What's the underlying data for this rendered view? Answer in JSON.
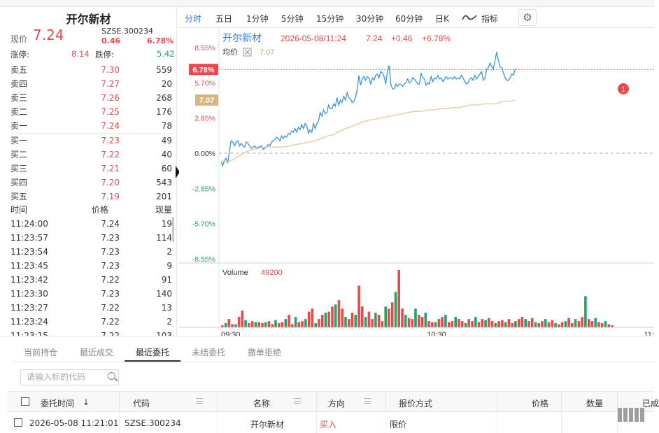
{
  "quote": {
    "name": "开尔新材",
    "price_label": "现价",
    "price": "7.24",
    "code": "SZSE.300234",
    "change": "0.46",
    "change_pct": "6.78%",
    "limit_up_label": "涨停:",
    "limit_up": "8.14",
    "limit_down_label": "跌停:",
    "limit_down": "5.42"
  },
  "order_book": [
    {
      "label": "卖五",
      "price": "7.30",
      "vol": "559"
    },
    {
      "label": "卖四",
      "price": "7.27",
      "vol": "20"
    },
    {
      "label": "卖三",
      "price": "7.26",
      "vol": "268"
    },
    {
      "label": "卖二",
      "price": "7.25",
      "vol": "176"
    },
    {
      "label": "卖一",
      "price": "7.24",
      "vol": "78"
    },
    {
      "label": "买一",
      "price": "7.23",
      "vol": "49"
    },
    {
      "label": "买二",
      "price": "7.22",
      "vol": "40"
    },
    {
      "label": "买三",
      "price": "7.21",
      "vol": "60"
    },
    {
      "label": "买四",
      "price": "7.20",
      "vol": "543"
    },
    {
      "label": "买五",
      "price": "7.19",
      "vol": "201"
    }
  ],
  "ticks_header": {
    "time": "时间",
    "price": "价格",
    "vol": "现量"
  },
  "ticks": [
    {
      "time": "11:24:00",
      "price": "7.24",
      "vol": "19"
    },
    {
      "time": "11:23:57",
      "price": "7.23",
      "vol": "114"
    },
    {
      "time": "11:23:54",
      "price": "7.23",
      "vol": "2"
    },
    {
      "time": "11:23:45",
      "price": "7.23",
      "vol": "9"
    },
    {
      "time": "11:23:42",
      "price": "7.22",
      "vol": "91"
    },
    {
      "time": "11:23:30",
      "price": "7.23",
      "vol": "140"
    },
    {
      "time": "11:23:27",
      "price": "7.22",
      "vol": "13"
    },
    {
      "time": "11:23:24",
      "price": "7.22",
      "vol": "2"
    },
    {
      "time": "11:23:15",
      "price": "7.22",
      "vol": "103"
    }
  ],
  "chart_tabs": [
    "分时",
    "五日",
    "1分钟",
    "5分钟",
    "15分钟",
    "30分钟",
    "60分钟",
    "日K"
  ],
  "chart_tab_active": "分时",
  "indicator_label": "指标",
  "icons": {
    "line_style": "wave-icon",
    "settings": "gear-icon",
    "search": "search-icon",
    "collapse": "collapse-arrow-icon"
  },
  "colors": {
    "up": "#e84a4a",
    "down": "#20a56a",
    "price_line": "#3a94dc",
    "avg_line": "#e8c9a0",
    "active_tab": "#2f80ed"
  },
  "chart_header": {
    "name": "开尔新材",
    "datetime": "2026-05-08/11:24",
    "price": "7.24",
    "change": "+0.46",
    "change_pct": "+6.78%",
    "avg_label": "均价",
    "avg_value": "7.07",
    "volume_label": "Volume",
    "volume_value": "49200",
    "marker_badge": "1",
    "price_tag": "6.78%",
    "avg_tag": "7.07"
  },
  "chart_data": {
    "type": "line",
    "ylabels": [
      "8.55%",
      "5.70%",
      "2.85%",
      "0.00%",
      "-2.85%",
      "-5.70%",
      "-8.55%"
    ],
    "ylim": [
      -8.55,
      8.55
    ],
    "xlabels": [
      "09:30",
      "10:30",
      "11:"
    ],
    "series": [
      {
        "values": [
          -0.7,
          -1.0,
          -0.6,
          -0.4,
          -0.8,
          0.2,
          1.0,
          0.9,
          0.6,
          0.9,
          1.0,
          0.6,
          0.8,
          0.6,
          0.5,
          0.9,
          0.8,
          0.6,
          0.4,
          0.5,
          0.6,
          0.4,
          0.5,
          0.5,
          0.6,
          0.3,
          0.4,
          0.5,
          0.7,
          0.6,
          0.9,
          1.0,
          1.1,
          1.3,
          1.2,
          1.0,
          1.4,
          1.2,
          1.4,
          1.3,
          1.6,
          1.5,
          1.8,
          1.7,
          2.0,
          1.7,
          2.1,
          1.9,
          2.3,
          2.0,
          2.4,
          2.2,
          1.6,
          1.9,
          1.7,
          2.4,
          2.0,
          2.4,
          2.6,
          3.3,
          3.0,
          3.5,
          3.2,
          3.3,
          3.9,
          3.6,
          3.6,
          4.0,
          3.8,
          4.5,
          3.9,
          4.3,
          4.1,
          4.6,
          4.3,
          4.9,
          4.5,
          4.4,
          4.1,
          4.2,
          4.5,
          5.2,
          6.3,
          5.5,
          6.0,
          6.2,
          5.9,
          6.2,
          6.1,
          5.6,
          6.1,
          5.9,
          6.3,
          6.4,
          6.1,
          6.6,
          6.5,
          6.2,
          5.6,
          6.6,
          7.1,
          5.6,
          5.2,
          5.2,
          5.6,
          5.4,
          5.6,
          5.6,
          5.4,
          5.6,
          5.7,
          6.0,
          5.7,
          5.8,
          6.1,
          6.0,
          5.8,
          5.6,
          5.6,
          6.5,
          6.1,
          6.0,
          5.5,
          5.7,
          5.6,
          6.2,
          5.8,
          6.1,
          6.0,
          6.3,
          6.0,
          6.1,
          5.8,
          6.0,
          6.2,
          6.0,
          6.1,
          6.1,
          6.0,
          6.2,
          6.0,
          6.1,
          6.0,
          6.3,
          6.1,
          5.8,
          5.6,
          5.7,
          6.0,
          6.1,
          5.9,
          6.3,
          6.0,
          6.2,
          6.4,
          6.6,
          5.9,
          6.1,
          6.8,
          6.9,
          7.3,
          7.0,
          6.8,
          7.5,
          8.2,
          7.5,
          7.0,
          6.9,
          6.5,
          6.1,
          5.9,
          5.9,
          6.1,
          6.4,
          6.3,
          6.8
        ]
      },
      {
        "values": [
          -0.6,
          -0.7,
          -0.5,
          -0.2,
          0.1,
          0.3,
          0.4,
          0.5,
          0.5,
          0.5,
          0.5,
          0.6,
          0.7,
          0.8,
          0.9,
          1.0,
          1.2,
          1.4,
          1.5,
          1.8,
          2.0,
          2.2,
          2.4,
          2.6,
          2.7,
          2.8,
          2.9,
          3.0,
          3.1,
          3.2,
          3.3,
          3.4,
          3.4,
          3.5,
          3.5,
          3.6,
          3.6,
          3.7,
          3.7,
          3.8,
          3.9,
          3.9,
          4.0,
          4.0,
          4.0,
          4.2,
          4.2,
          4.3
        ]
      }
    ],
    "volume": [
      2,
      4,
      8,
      3,
      3,
      10,
      16,
      7,
      4,
      6,
      5,
      5,
      4,
      5,
      6,
      3,
      7,
      4,
      5,
      8,
      12,
      3,
      10,
      5,
      6,
      8,
      15,
      18,
      4,
      8,
      12,
      14,
      15,
      20,
      22,
      26,
      18,
      10,
      8,
      14,
      12,
      40,
      20,
      10,
      15,
      8,
      14,
      12,
      6,
      20,
      18,
      24,
      34,
      55,
      18,
      12,
      9,
      8,
      18,
      12,
      10,
      14,
      6,
      5,
      5,
      8,
      10,
      12,
      5,
      6,
      10,
      8,
      6,
      4,
      8,
      6,
      10,
      5,
      8,
      7,
      9,
      6,
      4,
      6,
      7,
      5,
      8,
      4,
      6,
      8,
      10,
      8,
      6,
      9,
      5,
      4,
      6,
      8,
      5,
      7,
      4,
      3,
      5,
      6,
      9,
      4,
      8,
      6,
      10,
      30,
      8,
      6,
      9,
      5,
      4,
      6,
      3,
      2
    ]
  },
  "bottom": {
    "tabs": [
      "当前持仓",
      "最近成交",
      "最近委托",
      "未结委托",
      "撤单拒绝"
    ],
    "active_tab": "最近委托",
    "search_placeholder": "请输入标的代码",
    "columns": [
      "委托时间",
      "代码",
      "名称",
      "方向",
      "报价方式",
      "价格",
      "数量",
      "已成"
    ],
    "sort_indicator": "↓",
    "rows": [
      {
        "time": "2026-05-08 11:21:01",
        "code": "SZSE.300234",
        "name": "开尔新材",
        "direction": "买入",
        "order_type": "限价"
      }
    ]
  }
}
